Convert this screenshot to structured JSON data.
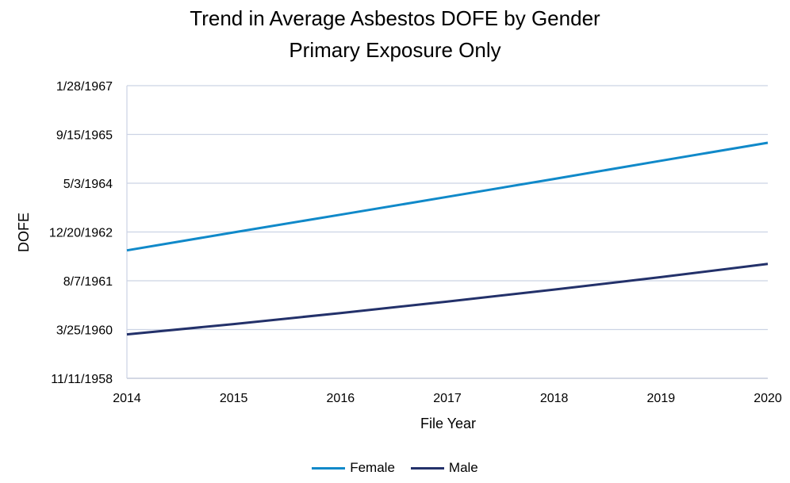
{
  "chart_data": {
    "type": "line",
    "title": "Trend in Average Asbestos DOFE by Gender",
    "subtitle": "Primary Exposure Only",
    "xlabel": "File Year",
    "ylabel": "DOFE",
    "x": [
      2014,
      2015,
      2016,
      2017,
      2018,
      2019,
      2020
    ],
    "xlim": [
      2014,
      2020
    ],
    "ylim": [
      "1958-11-11",
      "1967-01-28"
    ],
    "y_ticks": [
      "1958-11-11",
      "1960-03-25",
      "1961-08-07",
      "1962-12-20",
      "1964-05-03",
      "1965-09-15",
      "1967-01-28"
    ],
    "y_tick_labels": [
      "11/11/1958",
      "3/25/1960",
      "8/7/1961",
      "12/20/1962",
      "5/3/1964",
      "9/15/1965",
      "1/28/1967"
    ],
    "series": [
      {
        "name": "Female",
        "color": "#1089c9",
        "values": [
          "1962-06-14",
          "1962-12-16",
          "1963-06-15",
          "1963-12-15",
          "1964-06-16",
          "1964-12-19",
          "1965-06-22"
        ]
      },
      {
        "name": "Male",
        "color": "#23316a",
        "values": [
          "1960-02-04",
          "1960-05-20",
          "1960-09-10",
          "1961-01-06",
          "1961-05-09",
          "1961-09-13",
          "1962-01-27"
        ]
      }
    ],
    "grid": true,
    "legend_position": "bottom"
  }
}
